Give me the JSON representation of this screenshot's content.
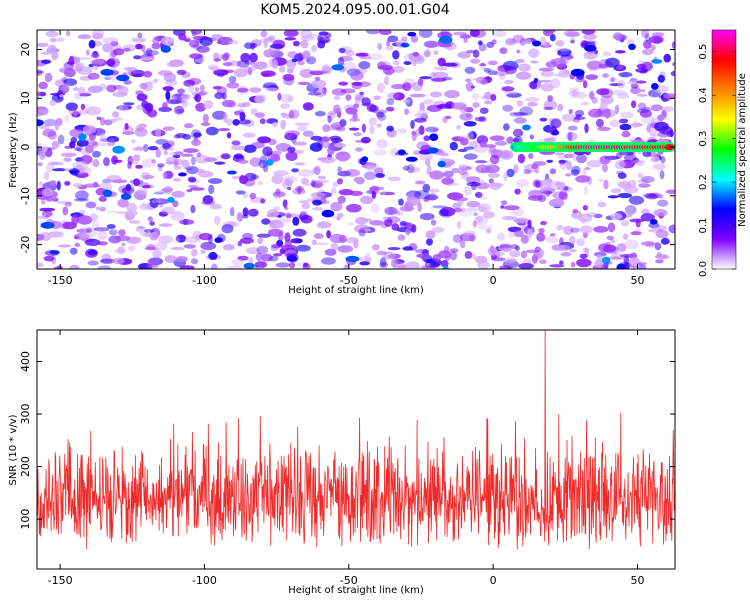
{
  "title": "KOM5.2024.095.00.01.G04",
  "chart_data": [
    {
      "type": "heatmap",
      "xlabel": "Height of straight line (km)",
      "ylabel": "Frequency (Hz)",
      "xlim": [
        -158,
        63
      ],
      "ylim": [
        -25,
        24
      ],
      "xticks": [
        -150,
        -100,
        -50,
        0,
        50
      ],
      "yticks": [
        -20,
        -10,
        0,
        10,
        20
      ],
      "colorbar": {
        "label": "Normalized spectral amplitude",
        "range": [
          0.0,
          0.55
        ],
        "ticks": [
          0.0,
          0.1,
          0.2,
          0.3,
          0.4,
          0.5
        ],
        "colors": [
          "#ffffff",
          "#7f00ff",
          "#0000ff",
          "#00ffff",
          "#00ff00",
          "#ffff00",
          "#ff8000",
          "#ff0000",
          "#ff00ff"
        ]
      },
      "feature": {
        "frequency_hz": 0,
        "x_start": 8,
        "x_end": 61,
        "peak_amplitude": 0.52
      }
    },
    {
      "type": "line",
      "xlabel": "Height of straight line (km)",
      "ylabel": "SNR (10 * v/v)",
      "xlim": [
        -158,
        63
      ],
      "ylim": [
        5,
        460
      ],
      "xticks": [
        -150,
        -100,
        -50,
        0,
        50
      ],
      "yticks": [
        100,
        200,
        300,
        400
      ],
      "color": "#ef2a2a",
      "typical_range": [
        40,
        320
      ],
      "peak": {
        "x": 18,
        "y": 460
      }
    }
  ]
}
